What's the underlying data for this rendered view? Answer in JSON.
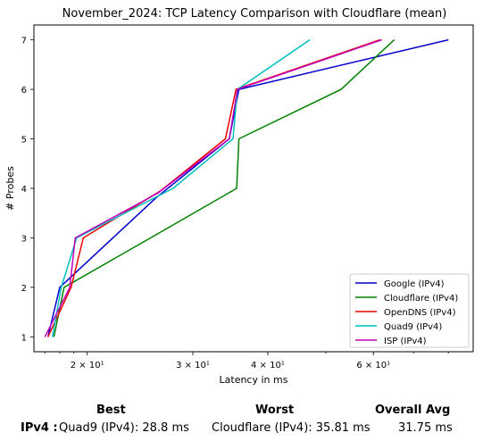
{
  "chart_data": {
    "type": "line",
    "title": "November_2024: TCP Latency Comparison with Cloudflare (mean)",
    "xlabel": "Latency in ms",
    "ylabel": "# Probes",
    "xscale": "log",
    "xlim": [
      16.3,
      88
    ],
    "ylim": [
      0.7,
      7.3
    ],
    "xticks": [
      {
        "value": 20,
        "label": "2 × 10¹"
      },
      {
        "value": 30,
        "label": "3 × 10¹"
      },
      {
        "value": 40,
        "label": "4 × 10¹"
      },
      {
        "value": 60,
        "label": "6 × 10¹"
      }
    ],
    "yticks": [
      1,
      2,
      3,
      4,
      5,
      6,
      7
    ],
    "grid": false,
    "legend_position": "bottom-right",
    "series": [
      {
        "name": "Google (IPv4)",
        "color": "#0000cc",
        "points": [
          [
            17.2,
            1
          ],
          [
            18.0,
            2
          ],
          [
            26.0,
            3.8
          ],
          [
            34.5,
            5
          ],
          [
            35.8,
            6
          ],
          [
            80.0,
            7
          ]
        ]
      },
      {
        "name": "Cloudflare (IPv4)",
        "color": "#008000",
        "points": [
          [
            17.6,
            1
          ],
          [
            18.3,
            2
          ],
          [
            25.5,
            3
          ],
          [
            35.5,
            4
          ],
          [
            35.8,
            5
          ],
          [
            53.0,
            6
          ],
          [
            65.0,
            7
          ]
        ]
      },
      {
        "name": "OpenDNS (IPv4)",
        "color": "#ee0000",
        "points": [
          [
            17.2,
            1
          ],
          [
            18.8,
            2
          ],
          [
            19.7,
            3
          ],
          [
            26.5,
            3.95
          ],
          [
            34.0,
            5
          ],
          [
            35.4,
            6
          ],
          [
            61.5,
            7
          ]
        ]
      },
      {
        "name": "Quad9 (IPv4)",
        "color": "#00bfbf",
        "points": [
          [
            17.5,
            1
          ],
          [
            18.1,
            2
          ],
          [
            19.2,
            3
          ],
          [
            27.8,
            4
          ],
          [
            35.0,
            5
          ],
          [
            35.6,
            6
          ],
          [
            47.0,
            7
          ]
        ]
      },
      {
        "name": "ISP (IPv4)",
        "color": "#bf00bf",
        "points": [
          [
            17.0,
            1
          ],
          [
            18.7,
            2
          ],
          [
            19.1,
            3
          ],
          [
            26.2,
            3.9
          ],
          [
            34.5,
            5
          ],
          [
            35.6,
            6
          ],
          [
            62.0,
            7
          ]
        ]
      }
    ]
  },
  "summary": {
    "headers": {
      "best": "Best",
      "worst": "Worst",
      "overall": "Overall Avg"
    },
    "row_label": "IPv4 :",
    "best_value": "Quad9 (IPv4): 28.8 ms",
    "worst_value": "Cloudflare (IPv4): 35.81 ms",
    "overall_value": "31.75 ms"
  }
}
